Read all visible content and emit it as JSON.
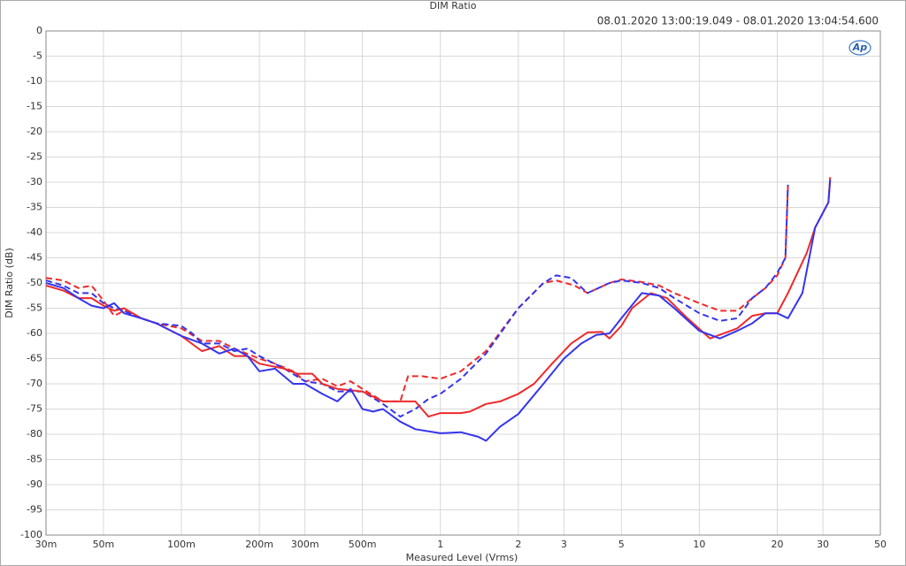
{
  "chart_data": {
    "type": "line",
    "title": "DIM Ratio",
    "subtitle": "08.01.2020 13:00:19.049 - 08.01.2020 13:04:54.600",
    "logo": "Ap",
    "x_label": "Measured Level (Vrms)",
    "y_label": "DIM Ratio (dB)",
    "x_scale": "log",
    "grid": true,
    "xlim": [
      0.03,
      50
    ],
    "ylim": [
      -100,
      0
    ],
    "xticks": [
      {
        "value": 0.03,
        "label": "30m"
      },
      {
        "value": 0.05,
        "label": "50m"
      },
      {
        "value": 0.1,
        "label": "100m"
      },
      {
        "value": 0.2,
        "label": "200m"
      },
      {
        "value": 0.3,
        "label": "300m"
      },
      {
        "value": 0.5,
        "label": "500m"
      },
      1,
      2,
      3,
      5,
      10,
      20,
      30,
      50
    ],
    "yticks": [
      0,
      -5,
      -10,
      -15,
      -20,
      -25,
      -30,
      -35,
      -40,
      -45,
      -50,
      -55,
      -60,
      -65,
      -70,
      -75,
      -80,
      -85,
      -90,
      -95,
      -100
    ],
    "series": [
      {
        "color": "#ee2a2a",
        "dashed": true,
        "x": [
          0.03,
          0.035,
          0.04,
          0.045,
          0.05,
          0.055,
          0.06,
          0.07,
          0.08,
          0.1,
          0.12,
          0.14,
          0.16,
          0.2,
          0.23,
          0.27,
          0.3,
          0.35,
          0.4,
          0.45,
          0.5,
          0.6,
          0.7,
          0.75,
          0.85,
          1.0,
          1.2,
          1.5,
          2,
          2.5,
          2.8,
          3.3,
          3.7,
          4.5,
          5,
          6,
          7,
          8,
          10,
          12,
          14,
          16,
          18,
          20,
          21.5,
          22
        ],
        "values": [
          -49,
          -49.5,
          -51,
          -50.5,
          -53.5,
          -56.5,
          -55.5,
          -57,
          -58,
          -59,
          -61.5,
          -61.5,
          -63,
          -65,
          -66,
          -67.5,
          -69.5,
          -69,
          -70.5,
          -69.5,
          -71,
          -73.5,
          -73.5,
          -68.5,
          -68.5,
          -69,
          -67.5,
          -63.5,
          -55,
          -50,
          -49.5,
          -50.5,
          -52,
          -50,
          -49.3,
          -49.8,
          -50.5,
          -52,
          -54,
          -55.5,
          -55.5,
          -53,
          -51,
          -48.5,
          -45,
          -30.5
        ]
      },
      {
        "color": "#3535ee",
        "dashed": true,
        "x": [
          0.03,
          0.035,
          0.04,
          0.045,
          0.05,
          0.055,
          0.06,
          0.07,
          0.08,
          0.1,
          0.11,
          0.12,
          0.14,
          0.16,
          0.18,
          0.2,
          0.25,
          0.3,
          0.35,
          0.4,
          0.5,
          0.6,
          0.7,
          0.8,
          0.9,
          1.0,
          1.2,
          1.5,
          2,
          2.5,
          2.8,
          3.2,
          3.7,
          4.5,
          5,
          6,
          7,
          8,
          10,
          12,
          14,
          16,
          18,
          20,
          21.5,
          22
        ],
        "values": [
          -49.5,
          -50.5,
          -52,
          -52,
          -54,
          -55,
          -55.5,
          -57,
          -58,
          -58.5,
          -60,
          -62,
          -62,
          -63.5,
          -63,
          -64.5,
          -67,
          -69.5,
          -70,
          -71.5,
          -71.5,
          -74,
          -76.5,
          -75,
          -73,
          -72,
          -69,
          -64,
          -55,
          -50,
          -48.5,
          -49,
          -52,
          -50,
          -49.5,
          -50,
          -51,
          -53,
          -56,
          -57.5,
          -57,
          -53,
          -51,
          -48,
          -45,
          -30.5
        ]
      },
      {
        "color": "#ee2a2a",
        "dashed": false,
        "x": [
          0.03,
          0.035,
          0.04,
          0.045,
          0.05,
          0.055,
          0.06,
          0.07,
          0.08,
          0.1,
          0.12,
          0.14,
          0.16,
          0.18,
          0.2,
          0.25,
          0.28,
          0.32,
          0.35,
          0.4,
          0.5,
          0.6,
          0.7,
          0.8,
          0.9,
          1.0,
          1.2,
          1.3,
          1.5,
          1.7,
          2.0,
          2.3,
          2.7,
          3.2,
          3.7,
          4.2,
          4.5,
          5,
          5.5,
          6.5,
          7.5,
          9,
          11,
          14,
          16,
          18,
          20,
          22,
          26,
          28,
          31.5,
          32
        ],
        "values": [
          -50.5,
          -51.5,
          -53,
          -53,
          -54.5,
          -55.5,
          -55,
          -57,
          -58,
          -60.5,
          -63.5,
          -62.5,
          -64.5,
          -64.5,
          -66,
          -67,
          -68,
          -68,
          -70,
          -71,
          -71.5,
          -73.5,
          -73.5,
          -73.5,
          -76.5,
          -75.8,
          -75.8,
          -75.5,
          -74,
          -73.5,
          -72,
          -70,
          -66,
          -62,
          -59.8,
          -59.7,
          -61,
          -58.5,
          -55,
          -52,
          -53,
          -57,
          -61,
          -59,
          -56.5,
          -56,
          -56,
          -52,
          -44,
          -39,
          -34,
          -29
        ]
      },
      {
        "color": "#3535ee",
        "dashed": false,
        "x": [
          0.03,
          0.035,
          0.04,
          0.045,
          0.05,
          0.055,
          0.06,
          0.07,
          0.08,
          0.1,
          0.12,
          0.14,
          0.16,
          0.18,
          0.2,
          0.23,
          0.27,
          0.3,
          0.35,
          0.4,
          0.45,
          0.5,
          0.55,
          0.6,
          0.7,
          0.8,
          1.0,
          1.2,
          1.4,
          1.5,
          1.7,
          2.0,
          2.5,
          3,
          3.5,
          4,
          4.5,
          5,
          6,
          7,
          8,
          10,
          12,
          14,
          16,
          18,
          20,
          22,
          25,
          28,
          31.5,
          32
        ],
        "values": [
          -50,
          -51,
          -53,
          -54.5,
          -55,
          -54,
          -56,
          -57,
          -58,
          -60.5,
          -62,
          -64,
          -63,
          -64.5,
          -67.5,
          -67,
          -70,
          -70,
          -72,
          -73.5,
          -71,
          -75,
          -75.5,
          -75,
          -77.5,
          -79,
          -79.8,
          -79.6,
          -80.5,
          -81.3,
          -78.5,
          -76,
          -70,
          -65,
          -62,
          -60.3,
          -60,
          -57,
          -52,
          -52.5,
          -55,
          -59.5,
          -61,
          -59.5,
          -58,
          -56,
          -56,
          -57,
          -52,
          -39,
          -34,
          -29.5
        ]
      }
    ]
  }
}
